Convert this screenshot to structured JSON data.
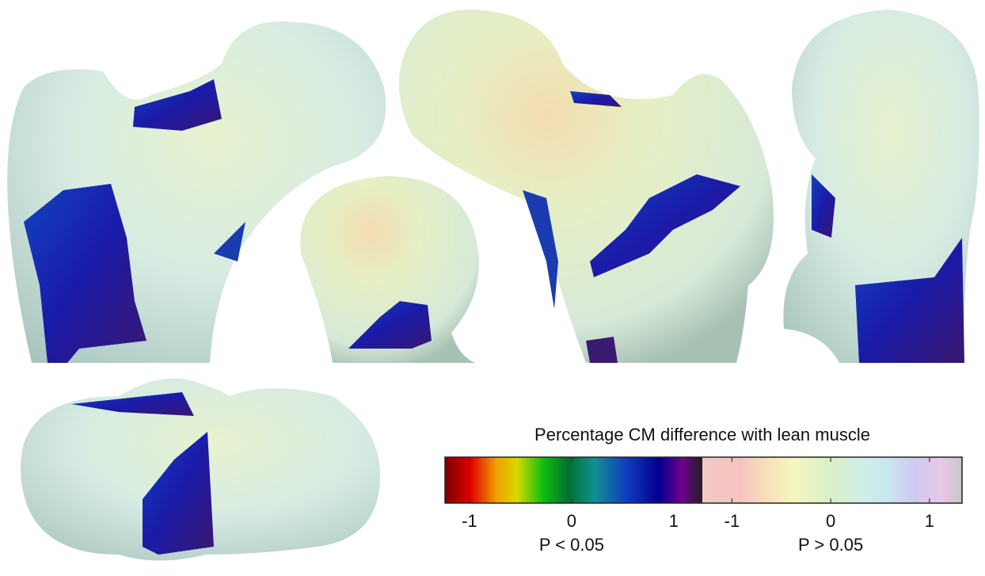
{
  "legend": {
    "title": "Percentage CM difference with lean muscle",
    "scales": [
      {
        "label": "P < 0.05",
        "lim": [
          -1.24,
          1.28
        ],
        "ticks": [
          -1,
          0,
          1
        ]
      },
      {
        "label": "P > 0.05",
        "lim": [
          -1.3,
          1.33
        ],
        "ticks": [
          -1,
          0,
          1
        ]
      }
    ]
  }
}
